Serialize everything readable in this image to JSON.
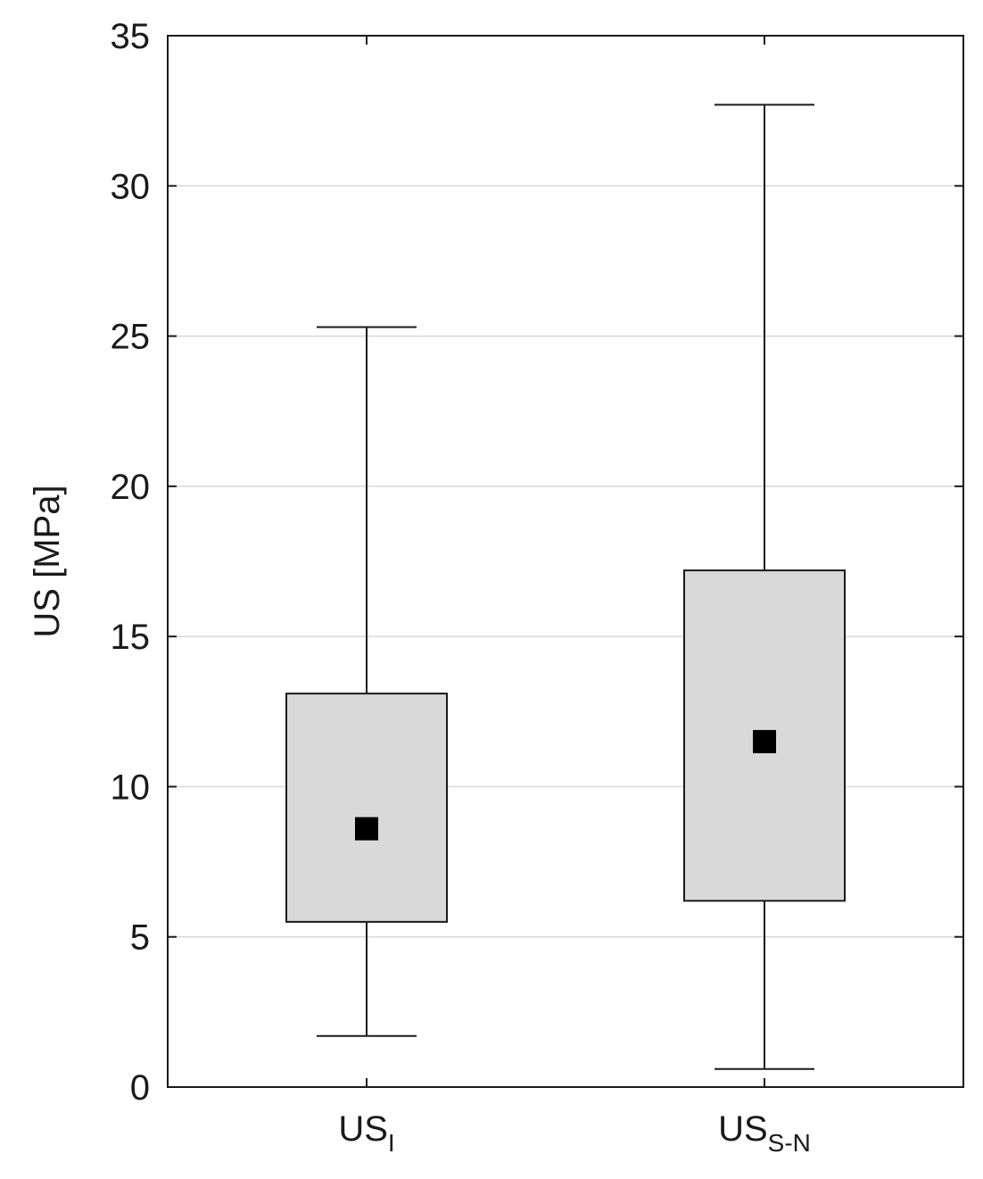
{
  "chart_data": {
    "type": "box",
    "title": "",
    "ylabel": "US [MPa]",
    "xlabel": "",
    "ylim": [
      0,
      35
    ],
    "yticks": [
      "0",
      "5",
      "10",
      "15",
      "20",
      "25",
      "30",
      "35"
    ],
    "grid": true,
    "categories": [
      {
        "base": "US",
        "sub": "I"
      },
      {
        "base": "US",
        "sub": "S-N"
      }
    ],
    "boxes": [
      {
        "whisker_low": 1.7,
        "q1": 5.5,
        "center": 8.6,
        "q3": 13.1,
        "whisker_high": 25.3
      },
      {
        "whisker_low": 0.6,
        "q1": 6.2,
        "center": 11.5,
        "q3": 17.2,
        "whisker_high": 32.7
      }
    ],
    "colors": {
      "box_fill": "#d9d9d9",
      "stroke": "#1a1a1a",
      "marker": "#000000",
      "grid": "#d8d8d8"
    }
  }
}
